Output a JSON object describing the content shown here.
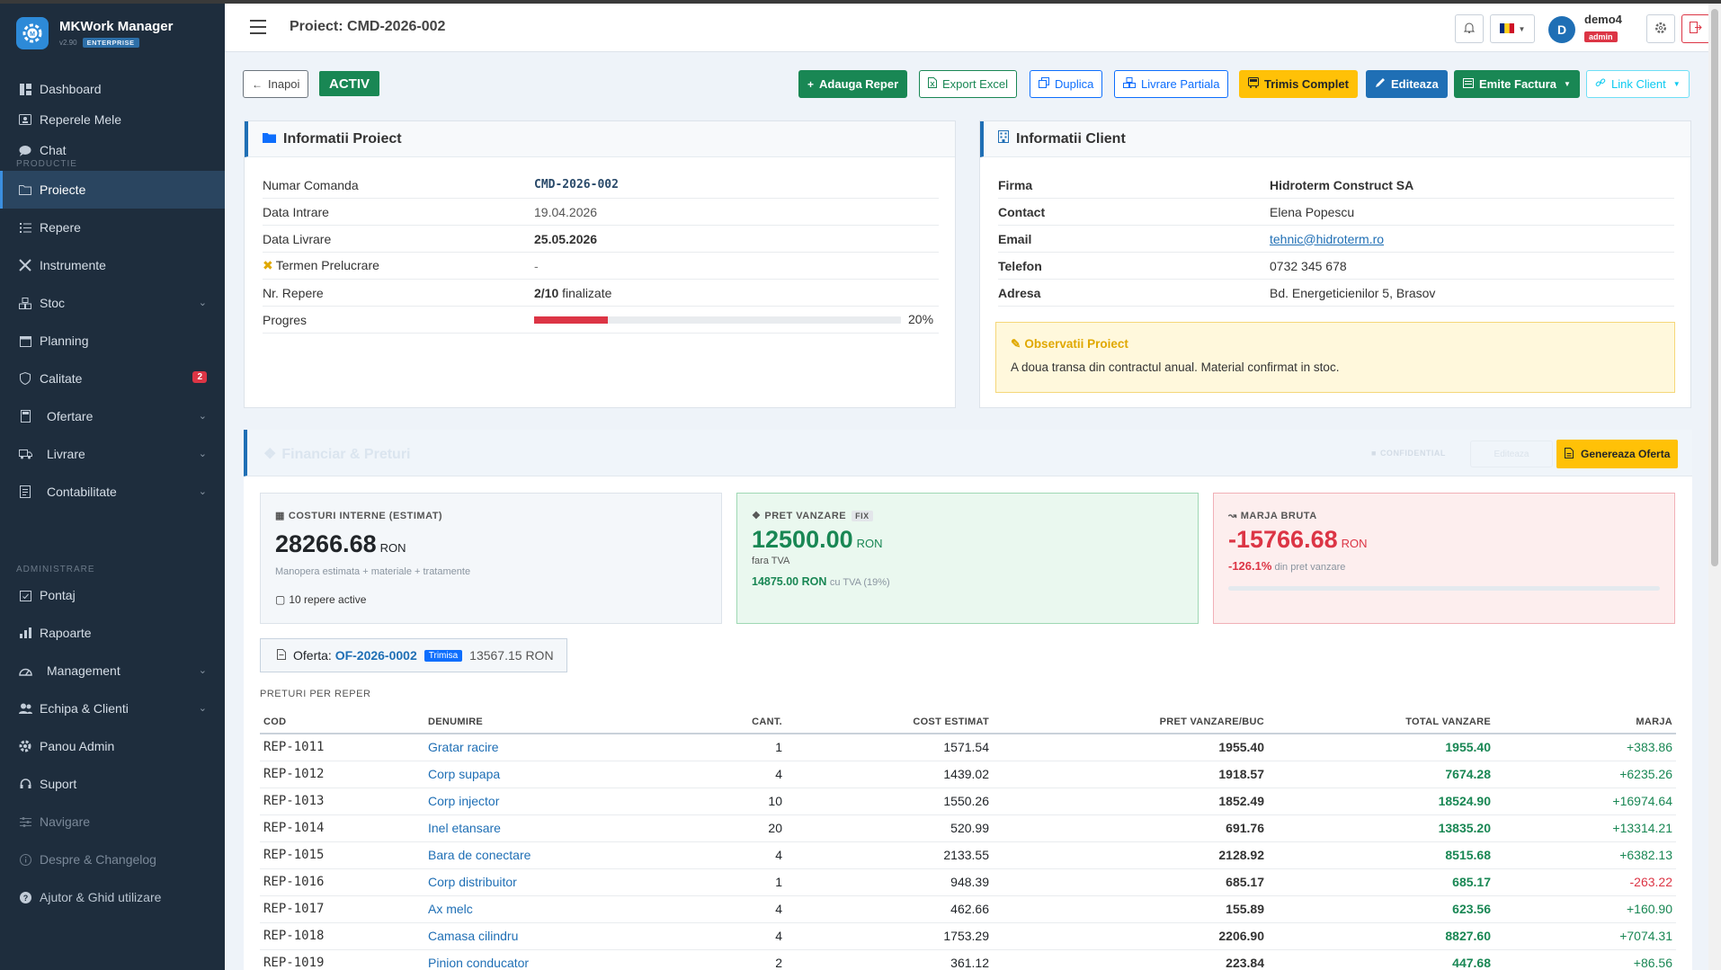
{
  "brand": {
    "name": "MKWork Manager",
    "version": "v2.90",
    "edition": "ENTERPRISE"
  },
  "sidebar": {
    "items": [
      {
        "label": "Dashboard",
        "icon": "dashboard-icon"
      },
      {
        "label": "Reperele Mele",
        "icon": "id-card-icon"
      },
      {
        "label": "Chat",
        "icon": "chat-icon"
      },
      {
        "label": "Proiecte",
        "icon": "folder-icon"
      },
      {
        "label": "Repere",
        "icon": "list-icon"
      },
      {
        "label": "Instrumente",
        "icon": "tools-icon"
      },
      {
        "label": "Stoc",
        "icon": "boxes-icon"
      },
      {
        "label": "Planning",
        "icon": "calendar-icon"
      },
      {
        "label": "Calitate",
        "icon": "shield-icon",
        "badge": "2"
      },
      {
        "label": "Ofertare",
        "icon": "calculator-icon"
      },
      {
        "label": "Livrare",
        "icon": "truck-icon"
      },
      {
        "label": "Contabilitate",
        "icon": "ledger-icon"
      },
      {
        "label": "Pontaj",
        "icon": "calendar-check-icon"
      },
      {
        "label": "Rapoarte",
        "icon": "bar-chart-icon"
      },
      {
        "label": "Management",
        "icon": "speedometer-icon"
      },
      {
        "label": "Echipa & Clienti",
        "icon": "people-icon"
      },
      {
        "label": "Panou Admin",
        "icon": "gear-icon"
      },
      {
        "label": "Suport",
        "icon": "headset-icon"
      },
      {
        "label": "Navigare",
        "icon": "sliders-icon"
      },
      {
        "label": "Despre & Changelog",
        "icon": "info-icon"
      },
      {
        "label": "Ajutor & Ghid utilizare",
        "icon": "question-icon"
      }
    ],
    "sections": {
      "productie": "PRODUCTIE",
      "administrare": "ADMINISTRARE"
    }
  },
  "header": {
    "title": "Proiect: CMD-2026-002",
    "user": "demo4",
    "role": "admin",
    "avatar": "D"
  },
  "toolbar": {
    "back": "Inapoi",
    "status": "ACTIV",
    "add": "Adauga Reper",
    "export": "Export Excel",
    "duplicate": "Duplica",
    "partial": "Livrare Partiala",
    "sent": "Trimis Complet",
    "edit": "Editeaza",
    "invoice": "Emite Factura",
    "link": "Link Client"
  },
  "project": {
    "title": "Informatii Proiect",
    "rows": [
      {
        "label": "Numar Comanda",
        "value": "CMD-2026-002"
      },
      {
        "label": "Data Intrare",
        "value": "19.04.2026"
      },
      {
        "label": "Data Livrare",
        "value": "25.05.2026"
      },
      {
        "label": "Termen Prelucrare",
        "value": "-"
      },
      {
        "label": "Nr. Repere",
        "value": "2/10",
        "suffix": "finalizate"
      },
      {
        "label": "Progres",
        "value": "20%"
      }
    ],
    "progress": 0.2
  },
  "client": {
    "title": "Informatii Client",
    "rows": [
      {
        "label": "Firma",
        "value": "Hidroterm Construct SA"
      },
      {
        "label": "Contact",
        "value": "Elena Popescu"
      },
      {
        "label": "Email",
        "value": "tehnic@hidroterm.ro"
      },
      {
        "label": "Telefon",
        "value": "0732 345 678"
      },
      {
        "label": "Adresa",
        "value": "Bd. Energeticienilor 5, Brasov"
      }
    ],
    "obs_title": "Observatii Proiect",
    "obs_text": "A doua transa din contractul anual. Material confirmat in stoc."
  },
  "financial": {
    "title": "Financiar & Preturi",
    "confidential": "CONFIDENTIAL",
    "ghost_btn": "Editeaza",
    "generate": "Genereaza Oferta",
    "costs": {
      "label": "COSTURI INTERNE (ESTIMAT)",
      "value": "28266.68",
      "unit": "RON",
      "note": "Manopera estimata + materiale + tratamente",
      "active": "10 repere active"
    },
    "sale": {
      "label": "PRET VANZARE",
      "tag": "FIX",
      "value": "12500.00",
      "unit": "RON",
      "note": "fara TVA",
      "vat_value": "14875.00 RON",
      "vat_note": "cu TVA (19%)"
    },
    "margin": {
      "label": "MARJA BRUTA",
      "value": "-15766.68",
      "unit": "RON",
      "pct": "-126.1%",
      "pct_note": "din pret vanzare"
    },
    "offer": {
      "label": "Oferta:",
      "code": "OF-2026-0002",
      "status": "Trimisa",
      "amount": "13567.15 RON"
    },
    "prices_label": "PRETURI PER REPER",
    "columns": [
      "COD",
      "DENUMIRE",
      "CANT.",
      "COST ESTIMAT",
      "PRET VANZARE/BUC",
      "TOTAL VANZARE",
      "MARJA"
    ],
    "rows": [
      {
        "cod": "REP-1011",
        "den": "Gratar racire",
        "cant": "1",
        "cost": "1571.54",
        "pret": "1955.40",
        "total": "1955.40",
        "marja": "+383.86",
        "neg": false
      },
      {
        "cod": "REP-1012",
        "den": "Corp supapa",
        "cant": "4",
        "cost": "1439.02",
        "pret": "1918.57",
        "total": "7674.28",
        "marja": "+6235.26",
        "neg": false
      },
      {
        "cod": "REP-1013",
        "den": "Corp injector",
        "cant": "10",
        "cost": "1550.26",
        "pret": "1852.49",
        "total": "18524.90",
        "marja": "+16974.64",
        "neg": false
      },
      {
        "cod": "REP-1014",
        "den": "Inel etansare",
        "cant": "20",
        "cost": "520.99",
        "pret": "691.76",
        "total": "13835.20",
        "marja": "+13314.21",
        "neg": false
      },
      {
        "cod": "REP-1015",
        "den": "Bara de conectare",
        "cant": "4",
        "cost": "2133.55",
        "pret": "2128.92",
        "total": "8515.68",
        "marja": "+6382.13",
        "neg": false
      },
      {
        "cod": "REP-1016",
        "den": "Corp distribuitor",
        "cant": "1",
        "cost": "948.39",
        "pret": "685.17",
        "total": "685.17",
        "marja": "-263.22",
        "neg": true
      },
      {
        "cod": "REP-1017",
        "den": "Ax melc",
        "cant": "4",
        "cost": "462.66",
        "pret": "155.89",
        "total": "623.56",
        "marja": "+160.90",
        "neg": false
      },
      {
        "cod": "REP-1018",
        "den": "Camasa cilindru",
        "cant": "4",
        "cost": "1753.29",
        "pret": "2206.90",
        "total": "8827.60",
        "marja": "+7074.31",
        "neg": false
      },
      {
        "cod": "REP-1019",
        "den": "Pinion conducator",
        "cant": "2",
        "cost": "361.12",
        "pret": "223.84",
        "total": "447.68",
        "marja": "+86.56",
        "neg": false
      }
    ]
  },
  "colors": {
    "sidebar": "#1e2d3d",
    "accent": "#1f6fb5",
    "success": "#198754",
    "danger": "#dc3545",
    "warning": "#ffc107"
  }
}
